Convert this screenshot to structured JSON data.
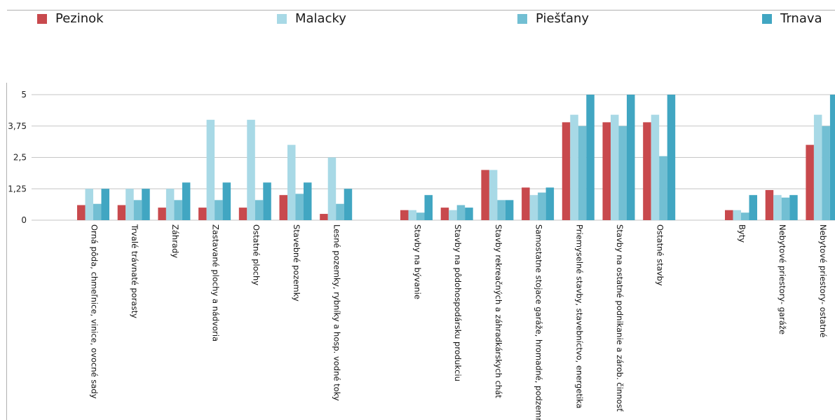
{
  "chart_data": {
    "type": "bar",
    "series": [
      {
        "name": "Pezinok",
        "color": "#c8494d",
        "values": [
          0.6,
          0.6,
          0.5,
          0.5,
          0.5,
          1.0,
          0.25,
          0.4,
          0.5,
          2.0,
          1.3,
          3.9,
          3.9,
          3.9,
          0.4,
          1.2,
          3.0
        ]
      },
      {
        "name": "Malacky",
        "color": "#a8d9e6",
        "values": [
          1.25,
          1.25,
          1.25,
          4.0,
          4.0,
          3.0,
          2.5,
          0.4,
          0.4,
          2.0,
          1.0,
          4.2,
          4.2,
          4.2,
          0.4,
          1.0,
          4.2
        ]
      },
      {
        "name": "Piešťany",
        "color": "#72bfd3",
        "values": [
          0.65,
          0.8,
          0.8,
          0.8,
          0.8,
          1.05,
          0.65,
          0.3,
          0.6,
          0.8,
          1.1,
          3.75,
          3.75,
          2.55,
          0.3,
          0.9,
          3.75
        ]
      },
      {
        "name": "Trnava",
        "color": "#41a6c2",
        "values": [
          1.25,
          1.25,
          1.5,
          1.5,
          1.5,
          1.5,
          1.25,
          1.0,
          0.5,
          0.8,
          1.3,
          5.0,
          5.0,
          5.0,
          1.0,
          1.0,
          5.0
        ]
      }
    ],
    "categories": [
      "Orná pôda, chmeľnice, vinice, ovocné sady",
      "Trvalé trávnaté porasty",
      "Záhrady",
      "Zastavané plochy a nádvoria",
      "Ostatné plochy",
      "Stavebné pozemky",
      "Lesné pozemky, rybníky a hosp.  vodné toky",
      "Stavby na bývanie",
      "Stavby na pôdohospodársku  produkciu",
      "Stavby rekreačných a záhradkárskych  chát",
      "Samostatne stojace garáže, hromadné, podzemné",
      "Priemyselné stavby,  stavebníctvo, energetika",
      "Stavby na ostatné podnikanie a zárob. činnosť",
      "Ostatné stavby",
      "Byty",
      "Nebytové priestory- garáže",
      "Nebytové priestory- ostatné"
    ],
    "groups": [
      [
        0,
        6
      ],
      [
        7,
        13
      ],
      [
        14,
        16
      ]
    ],
    "y_ticks": [
      "0",
      "1,25",
      "2,5",
      "3,75",
      "5"
    ],
    "y_tick_values": [
      0,
      1.25,
      2.5,
      3.75,
      5
    ],
    "ylim": [
      0,
      5
    ],
    "legend_position": "top",
    "grid": true,
    "title": "",
    "xlabel": "",
    "ylabel": ""
  }
}
